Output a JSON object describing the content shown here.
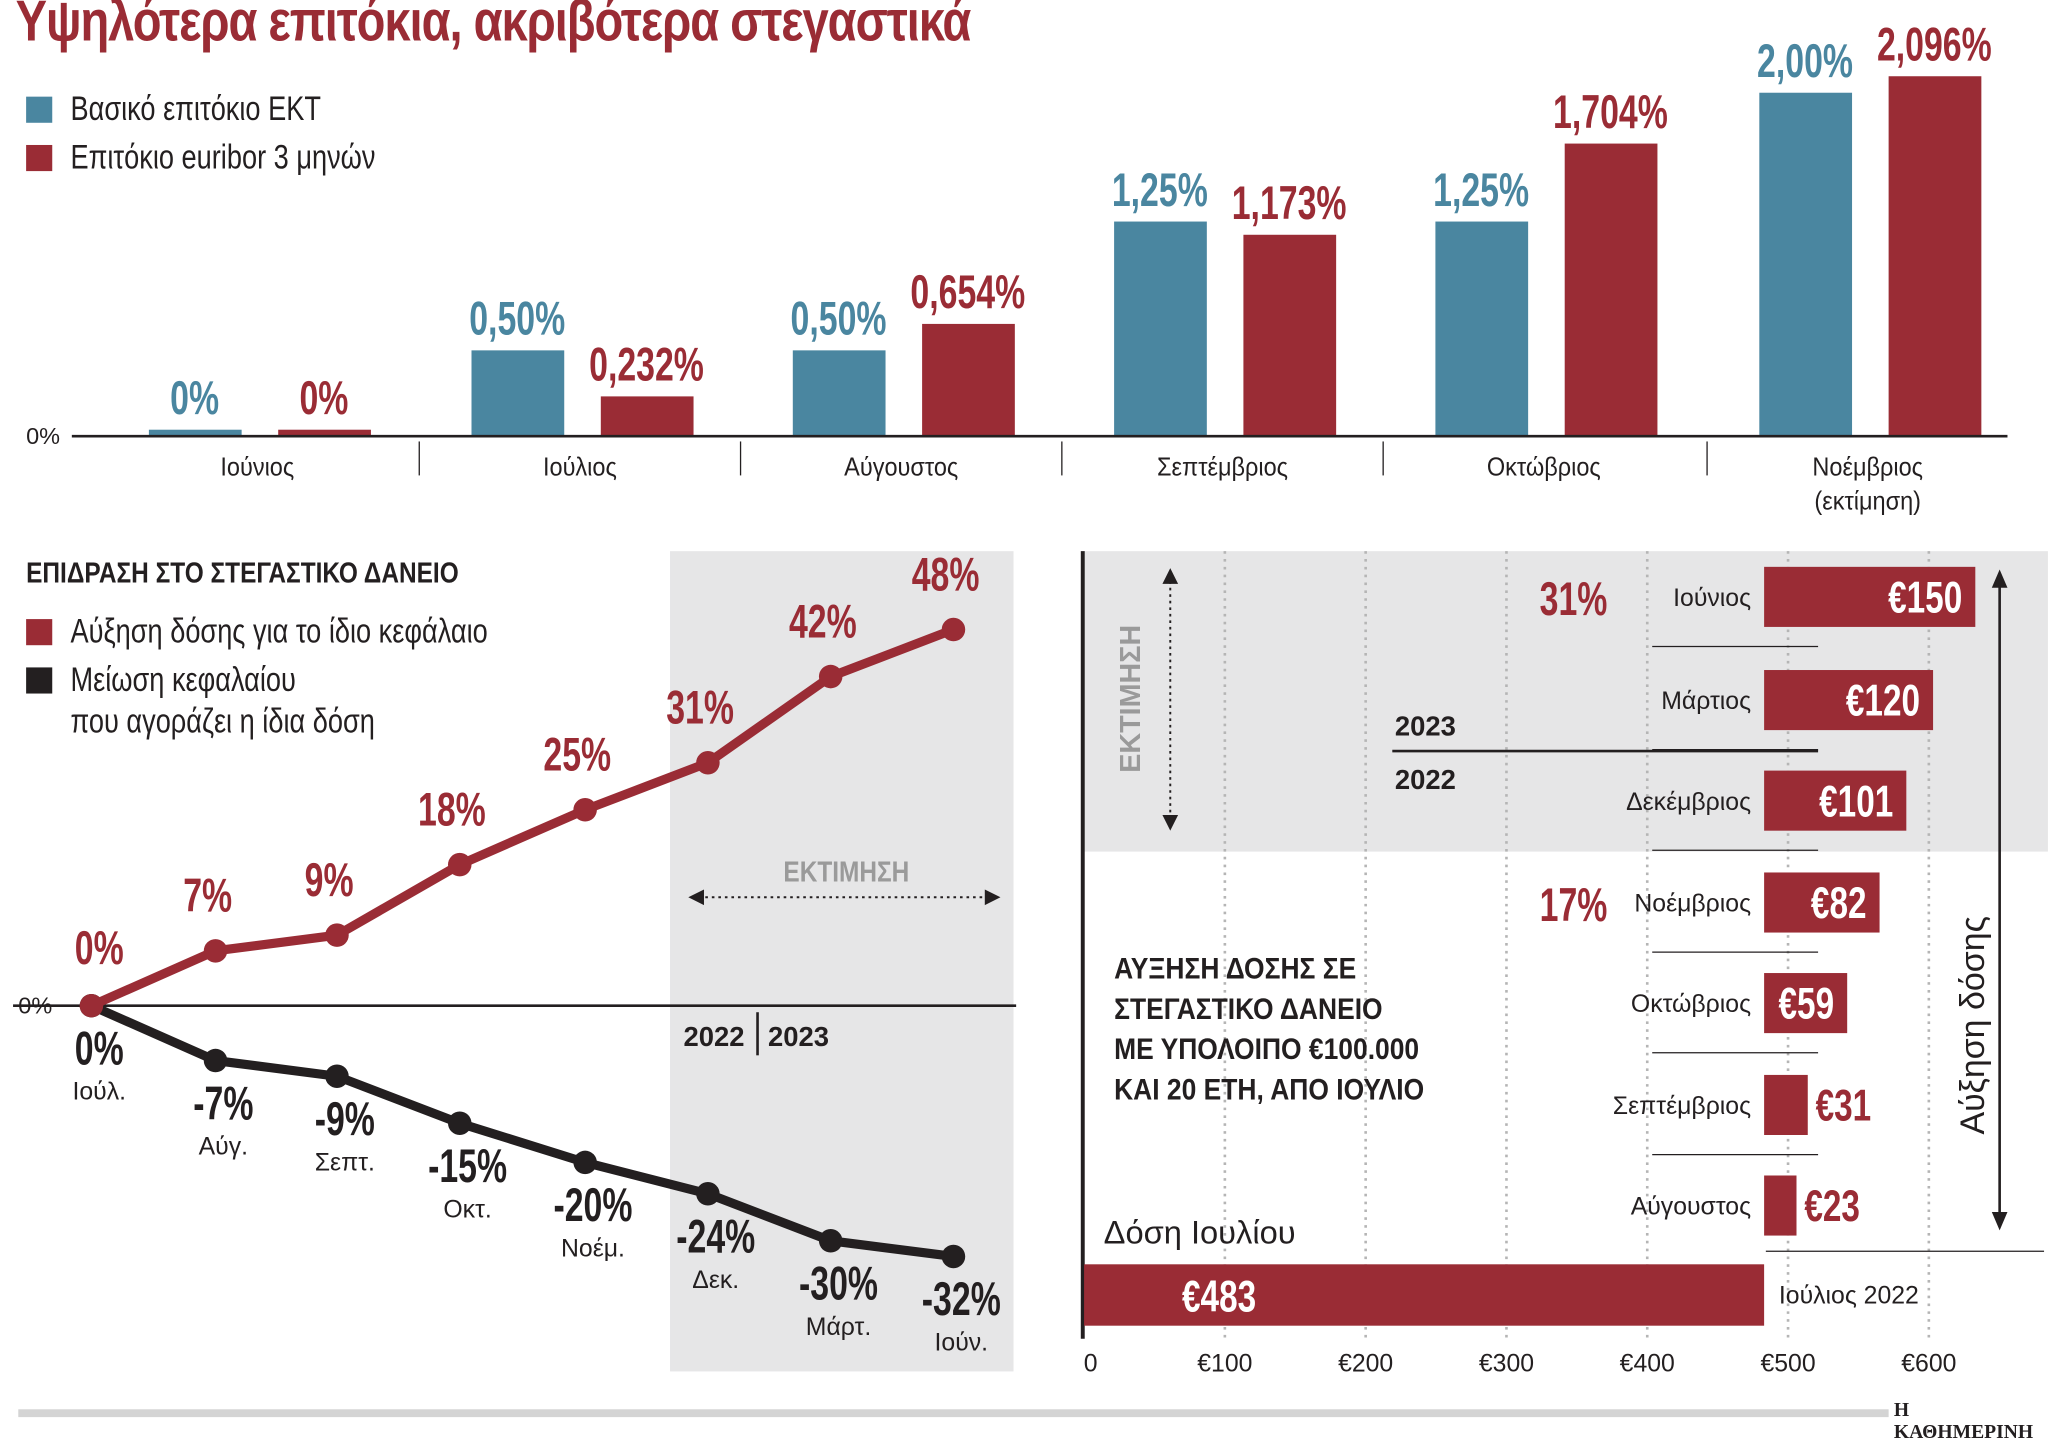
{
  "title": "Υψηλότερα επιτόκια, ακριβότερα στεγαστικά",
  "source": "Η ΚΑΘΗΜΕΡΙΝΗ",
  "colors": {
    "blue": "#4a86a0",
    "red": "#9a2c35",
    "black": "#231f20",
    "estimate_bg": "#e6e6e7"
  },
  "chart_data": [
    {
      "type": "bar",
      "legend": [
        "Βασικό επιτόκιο ΕΚΤ",
        "Επιτόκιο euribor 3 μηνών"
      ],
      "categories": [
        "Ιούνιος",
        "Ιούλιος",
        "Αύγουστος",
        "Σεπτέμβριος",
        "Οκτώβριος",
        "Νοέμβριος\n(εκτίμηση)"
      ],
      "series": [
        {
          "name": "Βασικό επιτόκιο ΕΚΤ",
          "values": [
            0,
            0.5,
            0.5,
            1.25,
            1.25,
            2.0
          ],
          "labels": [
            "0%",
            "0,50%",
            "0,50%",
            "1,25%",
            "1,25%",
            "2,00%"
          ]
        },
        {
          "name": "Επιτόκιο euribor 3 μηνών",
          "values": [
            0,
            0.232,
            0.654,
            1.173,
            1.704,
            2.096
          ],
          "labels": [
            "0%",
            "0,232%",
            "0,654%",
            "1,173%",
            "1,704%",
            "2,096%"
          ]
        }
      ],
      "y_zero_label": "0%"
    },
    {
      "type": "line",
      "title": "ΕΠΙΔΡΑΣΗ ΣΤΟ ΣΤΕΓΑΣΤΙΚΟ ΔΑΝΕΙΟ",
      "legend": [
        "Αύξηση δόσης για το ίδιο κεφάλαιο",
        "Μείωση κεφαλαίου",
        "που αγοράζει η ίδια δόση"
      ],
      "categories": [
        "Ιούλ.",
        "Αύγ.",
        "Σεπτ.",
        "Οκτ.",
        "Νοέμ.",
        "Δεκ.",
        "Μάρτ.",
        "Ιούν."
      ],
      "series": [
        {
          "name": "Αύξηση δόσης για το ίδιο κεφάλαιο",
          "values": [
            0,
            7,
            9,
            18,
            25,
            31,
            42,
            48
          ],
          "labels": [
            "0%",
            "7%",
            "9%",
            "18%",
            "25%",
            "31%",
            "42%",
            "48%"
          ]
        },
        {
          "name": "Μείωση κεφαλαίου που αγοράζει η ίδια δόση",
          "values": [
            0,
            -7,
            -9,
            -15,
            -20,
            -24,
            -30,
            -32
          ],
          "labels": [
            "0%",
            "-7%",
            "-9%",
            "-15%",
            "-20%",
            "-24%",
            "-30%",
            "-32%"
          ]
        }
      ],
      "y_zero_label": "0%",
      "estimate_label": "ΕΚΤΙΜΗΣΗ",
      "year_labels": [
        "2022",
        "2023"
      ]
    },
    {
      "type": "bar",
      "orientation": "horizontal",
      "annotation": [
        "ΑΥΞΗΣΗ ΔΟΣΗΣ ΣΕ",
        "ΣΤΕΓΑΣΤΙΚΟ ΔΑΝΕΙΟ",
        "ΜΕ ΥΠΟΛΟΙΠΟ €100.000",
        "ΚΑΙ 20 ΕΤΗ, ΑΠΟ ΙΟΥΛΙΟ"
      ],
      "base": {
        "label": "Ιούλιος 2022",
        "caption": "Δόση Ιουλίου",
        "value": 483,
        "value_label": "€483"
      },
      "increases": [
        {
          "month": "Ιούνιος",
          "value": 150,
          "label": "€150",
          "pct": "31%"
        },
        {
          "month": "Μάρτιος",
          "value": 120,
          "label": "€120",
          "pct": ""
        },
        {
          "month": "Δεκέμβριος",
          "value": 101,
          "label": "€101",
          "pct": ""
        },
        {
          "month": "Νοέμβριος",
          "value": 82,
          "label": "€82",
          "pct": "17%"
        },
        {
          "month": "Οκτώβριος",
          "value": 59,
          "label": "€59",
          "pct": ""
        },
        {
          "month": "Σεπτέμβριος",
          "value": 31,
          "label": "€31",
          "pct": ""
        },
        {
          "month": "Αύγουστος",
          "value": 23,
          "label": "€23",
          "pct": ""
        }
      ],
      "x_ticks": [
        "0",
        "€100",
        "€200",
        "€300",
        "€400",
        "€500",
        "€600"
      ],
      "xlim": [
        0,
        600
      ],
      "year_labels": [
        "2023",
        "2022"
      ],
      "estimate_label": "ΕΚΤΙΜΗΣΗ",
      "axis_label": "Αύξηση δόσης"
    }
  ]
}
